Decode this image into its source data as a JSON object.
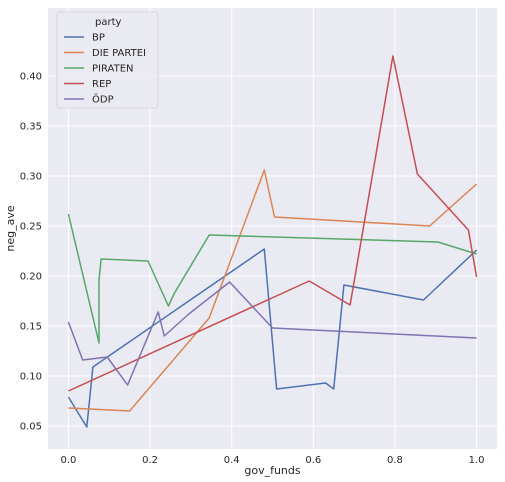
{
  "chart_data": {
    "type": "line",
    "xlabel": "gov_funds",
    "ylabel": "neg_ave",
    "xlim": [
      -0.05,
      1.05
    ],
    "ylim": [
      0.027,
      0.468
    ],
    "xticks": [
      "0.0",
      "0.2",
      "0.4",
      "0.6",
      "0.8",
      "1.0"
    ],
    "yticks": [
      "0.05",
      "0.10",
      "0.15",
      "0.20",
      "0.25",
      "0.30",
      "0.35",
      "0.40"
    ],
    "grid": true,
    "legend_position": "top-left",
    "legend_title": "party",
    "series": [
      {
        "name": "BP",
        "color": "#4c72b0",
        "points": [
          [
            0.0,
            0.079
          ],
          [
            0.045,
            0.049
          ],
          [
            0.06,
            0.109
          ],
          [
            0.48,
            0.227
          ],
          [
            0.51,
            0.087
          ],
          [
            0.63,
            0.093
          ],
          [
            0.65,
            0.087
          ],
          [
            0.675,
            0.191
          ],
          [
            0.87,
            0.176
          ],
          [
            1.0,
            0.226
          ]
        ]
      },
      {
        "name": "DIE PARTEI",
        "color": "#dd8452",
        "points": [
          [
            0.0,
            0.068
          ],
          [
            0.15,
            0.065
          ],
          [
            0.345,
            0.158
          ],
          [
            0.48,
            0.306
          ],
          [
            0.505,
            0.259
          ],
          [
            0.885,
            0.25
          ],
          [
            1.0,
            0.292
          ]
        ]
      },
      {
        "name": "PIRATEN",
        "color": "#55a868",
        "points": [
          [
            0.0,
            0.262
          ],
          [
            0.075,
            0.133
          ],
          [
            0.075,
            0.196
          ],
          [
            0.08,
            0.217
          ],
          [
            0.195,
            0.215
          ],
          [
            0.245,
            0.17
          ],
          [
            0.26,
            0.183
          ],
          [
            0.345,
            0.241
          ],
          [
            0.905,
            0.234
          ],
          [
            1.0,
            0.222
          ]
        ]
      },
      {
        "name": "REP",
        "color": "#c44e52",
        "points": [
          [
            0.0,
            0.085
          ],
          [
            0.59,
            0.195
          ],
          [
            0.69,
            0.171
          ],
          [
            0.795,
            0.42
          ],
          [
            0.855,
            0.302
          ],
          [
            0.98,
            0.246
          ],
          [
            1.0,
            0.199
          ]
        ]
      },
      {
        "name": "ÖDP",
        "color": "#8172b3",
        "points": [
          [
            0.0,
            0.154
          ],
          [
            0.035,
            0.116
          ],
          [
            0.095,
            0.119
          ],
          [
            0.145,
            0.091
          ],
          [
            0.22,
            0.164
          ],
          [
            0.235,
            0.14
          ],
          [
            0.295,
            0.162
          ],
          [
            0.395,
            0.194
          ],
          [
            0.5,
            0.148
          ],
          [
            1.0,
            0.138
          ]
        ]
      }
    ]
  },
  "colors": {
    "plot_background": "#eaeaf2",
    "grid": "#ffffff",
    "text": "#262626"
  }
}
